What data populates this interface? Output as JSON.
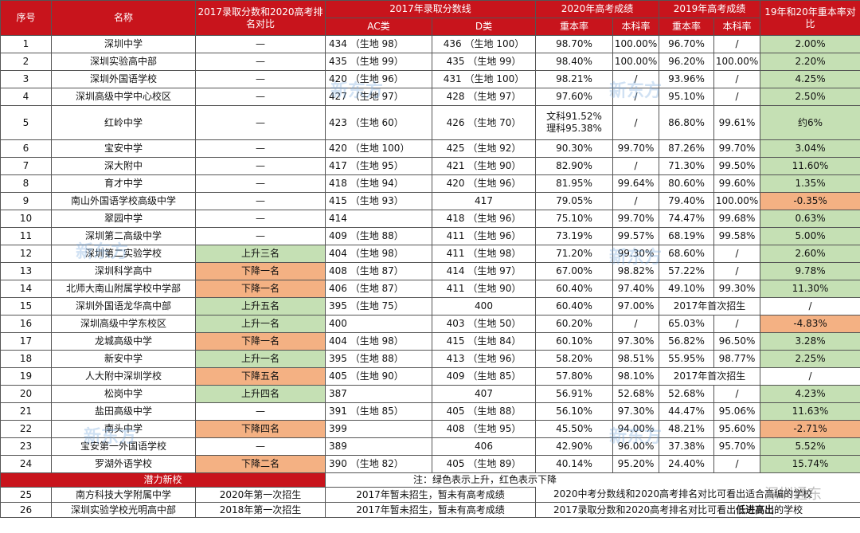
{
  "headers": {
    "no": "序号",
    "name": "名称",
    "compare_2017_2020": "2017录取分数和2020高考排名对比",
    "score2017": "2017年录取分数线",
    "ac": "AC类",
    "d": "D类",
    "gk2020": "2020年高考成绩",
    "gk2019": "2019年高考成绩",
    "zb": "重本率",
    "bk": "本科率",
    "diff": "19年和20年重本率对比"
  },
  "rows": [
    {
      "no": "1",
      "name": "深圳中学",
      "cmp": "—",
      "cmp_color": "",
      "ac": "434 （生地 98）",
      "d": "436 （生地 100）",
      "zb20": "98.70%",
      "bk20": "100.00%",
      "zb19": "96.70%",
      "bk19": "/",
      "diff": "2.00%",
      "diff_color": "green"
    },
    {
      "no": "2",
      "name": "深圳实验高中部",
      "cmp": "—",
      "cmp_color": "",
      "ac": "435 （生地 99）",
      "d": "435 （生地 99）",
      "zb20": "98.40%",
      "bk20": "100.00%",
      "zb19": "96.20%",
      "bk19": "100.00%",
      "diff": "2.20%",
      "diff_color": "green"
    },
    {
      "no": "3",
      "name": "深圳外国语学校",
      "cmp": "—",
      "cmp_color": "",
      "ac": "420 （生地 96）",
      "d": "431 （生地 100）",
      "zb20": "98.21%",
      "bk20": "/",
      "zb19": "93.96%",
      "bk19": "/",
      "diff": "4.25%",
      "diff_color": "green"
    },
    {
      "no": "4",
      "name": "深圳高级中学中心校区",
      "cmp": "—",
      "cmp_color": "",
      "ac": "427 （生地 97）",
      "d": "428 （生地 97）",
      "zb20": "97.60%",
      "bk20": "/",
      "zb19": "95.10%",
      "bk19": "/",
      "diff": "2.50%",
      "diff_color": "green"
    },
    {
      "no": "5",
      "name": "红岭中学",
      "cmp": "—",
      "cmp_color": "",
      "ac": "423 （生地 60）",
      "d": "426 （生地 70）",
      "zb20": "文科91.52%",
      "zb20b": "理科95.38%",
      "bk20": "/",
      "zb19": "86.80%",
      "bk19": "99.61%",
      "diff": "约6%",
      "diff_color": "green"
    },
    {
      "no": "6",
      "name": "宝安中学",
      "cmp": "—",
      "cmp_color": "",
      "ac": "420 （生地 100）",
      "d": "425 （生地 92）",
      "zb20": "90.30%",
      "bk20": "99.70%",
      "zb19": "87.26%",
      "bk19": "99.70%",
      "diff": "3.04%",
      "diff_color": "green"
    },
    {
      "no": "7",
      "name": "深大附中",
      "cmp": "—",
      "cmp_color": "",
      "ac": "417 （生地 95）",
      "d": "421 （生地 90）",
      "zb20": "82.90%",
      "bk20": "/",
      "zb19": "71.30%",
      "bk19": "99.50%",
      "diff": "11.60%",
      "diff_color": "green"
    },
    {
      "no": "8",
      "name": "育才中学",
      "cmp": "—",
      "cmp_color": "",
      "ac": "418 （生地 94）",
      "d": "420 （生地 96）",
      "zb20": "81.95%",
      "bk20": "99.64%",
      "zb19": "80.60%",
      "bk19": "99.60%",
      "diff": "1.35%",
      "diff_color": "green"
    },
    {
      "no": "9",
      "name": "南山外国语学校高级中学",
      "cmp": "—",
      "cmp_color": "",
      "ac": "415 （生地 93）",
      "d": "417",
      "zb20": "79.05%",
      "bk20": "/",
      "zb19": "79.40%",
      "bk19": "100.00%",
      "diff": "-0.35%",
      "diff_color": "red"
    },
    {
      "no": "10",
      "name": "翠园中学",
      "cmp": "—",
      "cmp_color": "",
      "ac": "414",
      "d": "418 （生地 96）",
      "zb20": "75.10%",
      "bk20": "99.70%",
      "zb19": "74.47%",
      "bk19": "99.68%",
      "diff": "0.63%",
      "diff_color": "green"
    },
    {
      "no": "11",
      "name": "深圳第二高级中学",
      "cmp": "—",
      "cmp_color": "",
      "ac": "409 （生地 88）",
      "d": "411 （生地 96）",
      "zb20": "73.19%",
      "bk20": "99.57%",
      "zb19": "68.19%",
      "bk19": "99.58%",
      "diff": "5.00%",
      "diff_color": "green"
    },
    {
      "no": "12",
      "name": "深圳第二实验学校",
      "cmp": "上升三名",
      "cmp_color": "green",
      "ac": "404 （生地 98）",
      "d": "411 （生地 98）",
      "zb20": "71.20%",
      "bk20": "99.30%",
      "zb19": "68.60%",
      "bk19": "/",
      "diff": "2.60%",
      "diff_color": "green"
    },
    {
      "no": "13",
      "name": "深圳科学高中",
      "cmp": "下降一名",
      "cmp_color": "red",
      "ac": "408 （生地 87）",
      "d": "414 （生地 97）",
      "zb20": "67.00%",
      "bk20": "98.82%",
      "zb19": "57.22%",
      "bk19": "/",
      "diff": "9.78%",
      "diff_color": "green"
    },
    {
      "no": "14",
      "name": "北师大南山附属学校中学部",
      "cmp": "下降一名",
      "cmp_color": "red",
      "ac": "406 （生地 87）",
      "d": "411 （生地 90）",
      "zb20": "60.40%",
      "bk20": "97.40%",
      "zb19": "49.10%",
      "bk19": "99.30%",
      "diff": "11.30%",
      "diff_color": "green"
    },
    {
      "no": "15",
      "name": "深圳外国语龙华高中部",
      "cmp": "上升五名",
      "cmp_color": "green",
      "ac": "395 （生地 75）",
      "d": "400",
      "zb20": "60.40%",
      "bk20": "97.00%",
      "merged19": "2017年首次招生",
      "diff": "/",
      "diff_color": ""
    },
    {
      "no": "16",
      "name": "深圳高级中学东校区",
      "cmp": "上升一名",
      "cmp_color": "green",
      "ac": "400",
      "d": "403 （生地 50）",
      "zb20": "60.20%",
      "bk20": "/",
      "zb19": "65.03%",
      "bk19": "/",
      "diff": "-4.83%",
      "diff_color": "red"
    },
    {
      "no": "17",
      "name": "龙城高级中学",
      "cmp": "下降一名",
      "cmp_color": "red",
      "ac": "404 （生地 98）",
      "d": "415 （生地 84）",
      "zb20": "60.10%",
      "bk20": "97.30%",
      "zb19": "56.82%",
      "bk19": "96.50%",
      "diff": "3.28%",
      "diff_color": "green"
    },
    {
      "no": "18",
      "name": "新安中学",
      "cmp": "上升一名",
      "cmp_color": "green",
      "ac": "395 （生地 88）",
      "d": "413 （生地 96）",
      "zb20": "58.20%",
      "bk20": "98.51%",
      "zb19": "55.95%",
      "bk19": "98.77%",
      "diff": "2.25%",
      "diff_color": "green"
    },
    {
      "no": "19",
      "name": "人大附中深圳学校",
      "cmp": "下降五名",
      "cmp_color": "red",
      "ac": "405 （生地 90）",
      "d": "409 （生地 85）",
      "zb20": "57.80%",
      "bk20": "98.10%",
      "merged19": "2017年首次招生",
      "diff": "/",
      "diff_color": ""
    },
    {
      "no": "20",
      "name": "松岗中学",
      "cmp": "上升四名",
      "cmp_color": "green",
      "ac": "387",
      "d": "407",
      "zb20": "56.91%",
      "bk20": "52.68%",
      "zb19": "52.68%",
      "bk19": "/",
      "diff": "4.23%",
      "diff_color": "green"
    },
    {
      "no": "21",
      "name": "盐田高级中学",
      "cmp": "—",
      "cmp_color": "",
      "ac": "391 （生地 85）",
      "d": "405 （生地 88）",
      "zb20": "56.10%",
      "bk20": "97.30%",
      "zb19": "44.47%",
      "bk19": "95.06%",
      "diff": "11.63%",
      "diff_color": "green"
    },
    {
      "no": "22",
      "name": "南头中学",
      "cmp": "下降四名",
      "cmp_color": "red",
      "ac": "399",
      "d": "408 （生地 95）",
      "zb20": "45.50%",
      "bk20": "94.00%",
      "zb19": "48.21%",
      "bk19": "95.60%",
      "diff": "-2.71%",
      "diff_color": "red"
    },
    {
      "no": "23",
      "name": "宝安第一外国语学校",
      "cmp": "—",
      "cmp_color": "",
      "ac": "389",
      "d": "406",
      "zb20": "42.90%",
      "bk20": "96.00%",
      "zb19": "37.38%",
      "bk19": "95.70%",
      "diff": "5.52%",
      "diff_color": "green"
    },
    {
      "no": "24",
      "name": "罗湖外语学校",
      "cmp": "下降二名",
      "cmp_color": "red",
      "ac": "390 （生地 82）",
      "d": "405 （生地 89）",
      "zb20": "40.14%",
      "bk20": "95.20%",
      "zb19": "24.40%",
      "bk19": "/",
      "diff": "15.74%",
      "diff_color": "green"
    }
  ],
  "section_title": "潜力新校",
  "new_rows": [
    {
      "no": "25",
      "name": "南方科技大学附属中学",
      "cmp": "2020年第一次招生",
      "score": "2017年暂未招生，暂未有高考成绩"
    },
    {
      "no": "26",
      "name": "深圳实验学校光明高中部",
      "cmp": "2018年第一次招生",
      "score": "2017年暂未招生，暂未有高考成绩"
    }
  ],
  "notes": {
    "line1": "注：绿色表示上升，红色表示下降",
    "line2": "2020中考分数线和2020高考排名对比可看出适合高编的学校",
    "line3_pre": "2017录取分数和2020高考排名对比可看出",
    "line3_bold": "低进高出",
    "line3_post": "的学校"
  },
  "watermarks": [
    "新东方",
    "新东方",
    "新东方",
    "新东方",
    "新东方",
    "新东方"
  ],
  "corner_watermark": "深圳通东",
  "colors": {
    "header": "#c8141c",
    "green": "#c5e0b4",
    "red": "#f4b183"
  }
}
